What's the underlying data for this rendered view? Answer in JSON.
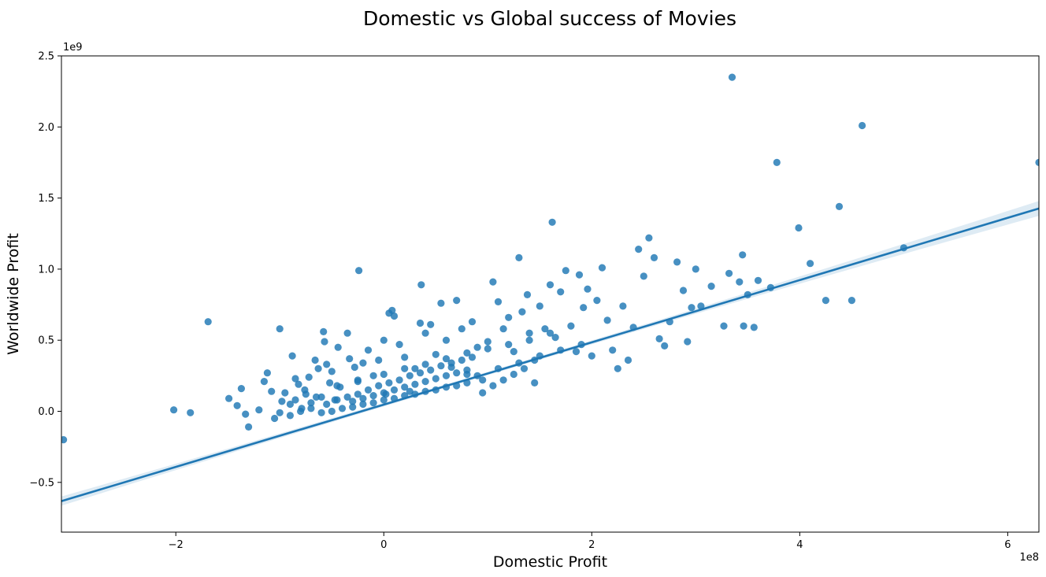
{
  "chart_data": {
    "type": "scatter",
    "title": "Domestic vs Global success of Movies",
    "xlabel": "Domestic Profit",
    "ylabel": "Worldwide Profit",
    "x_offset_label": "1e8",
    "y_offset_label": "1e9",
    "xlim": [
      -3.1,
      6.3
    ],
    "ylim": [
      -0.85,
      2.5
    ],
    "xticks": [
      -2,
      0,
      2,
      4,
      6
    ],
    "xtick_labels": [
      "−2",
      "0",
      "2",
      "4",
      "6"
    ],
    "yticks": [
      -0.5,
      0.0,
      0.5,
      1.0,
      1.5,
      2.0,
      2.5
    ],
    "ytick_labels": [
      "−0.5",
      "0.0",
      "0.5",
      "1.0",
      "1.5",
      "2.0",
      "2.5"
    ],
    "grid": false,
    "regression": {
      "slope": 0.219,
      "intercept": 0.047,
      "x_range": [
        -3.1,
        6.3
      ],
      "ci_width_at_edges": 0.08
    },
    "color": "#1f77b4",
    "points": [
      [
        -3.08,
        -0.2
      ],
      [
        -2.02,
        0.01
      ],
      [
        -1.86,
        -0.01
      ],
      [
        -1.69,
        0.63
      ],
      [
        -1.49,
        0.09
      ],
      [
        -1.41,
        0.04
      ],
      [
        -1.37,
        0.16
      ],
      [
        -1.33,
        -0.02
      ],
      [
        -1.3,
        -0.11
      ],
      [
        -1.2,
        0.01
      ],
      [
        -1.15,
        0.21
      ],
      [
        -1.12,
        0.27
      ],
      [
        -1.08,
        0.14
      ],
      [
        -1.05,
        -0.05
      ],
      [
        -1.0,
        0.58
      ],
      [
        -0.98,
        0.07
      ],
      [
        -0.95,
        0.13
      ],
      [
        -0.9,
        -0.03
      ],
      [
        -0.88,
        0.39
      ],
      [
        -0.85,
        0.23
      ],
      [
        -0.82,
        0.19
      ],
      [
        -0.79,
        0.02
      ],
      [
        -0.76,
        0.15
      ],
      [
        -0.72,
        0.24
      ],
      [
        -0.7,
        0.06
      ],
      [
        -0.66,
        0.36
      ],
      [
        -0.63,
        0.3
      ],
      [
        -0.6,
        0.1
      ],
      [
        -0.58,
        0.56
      ],
      [
        -0.57,
        0.49
      ],
      [
        -0.55,
        0.33
      ],
      [
        -0.52,
        0.2
      ],
      [
        -0.5,
        0.28
      ],
      [
        -0.47,
        0.08
      ],
      [
        -0.44,
        0.45
      ],
      [
        -0.42,
        0.17
      ],
      [
        -0.35,
        0.55
      ],
      [
        -0.33,
        0.37
      ],
      [
        -0.28,
        0.31
      ],
      [
        -0.25,
        0.22
      ],
      [
        -0.24,
        0.99
      ],
      [
        -0.2,
        0.34
      ],
      [
        -0.15,
        0.43
      ],
      [
        -0.1,
        0.25
      ],
      [
        -0.05,
        0.36
      ],
      [
        0.0,
        0.5
      ],
      [
        0.02,
        0.12
      ],
      [
        0.05,
        0.69
      ],
      [
        0.08,
        0.71
      ],
      [
        0.1,
        0.67
      ],
      [
        0.15,
        0.47
      ],
      [
        0.2,
        0.38
      ],
      [
        0.25,
        0.14
      ],
      [
        0.3,
        0.3
      ],
      [
        0.35,
        0.62
      ],
      [
        0.36,
        0.89
      ],
      [
        0.4,
        0.55
      ],
      [
        0.45,
        0.61
      ],
      [
        0.5,
        0.4
      ],
      [
        0.55,
        0.76
      ],
      [
        0.6,
        0.5
      ],
      [
        0.65,
        0.31
      ],
      [
        0.7,
        0.78
      ],
      [
        0.75,
        0.58
      ],
      [
        0.8,
        0.26
      ],
      [
        0.85,
        0.63
      ],
      [
        0.9,
        0.45
      ],
      [
        0.95,
        0.22
      ],
      [
        1.0,
        0.49
      ],
      [
        1.05,
        0.91
      ],
      [
        1.1,
        0.77
      ],
      [
        1.15,
        0.58
      ],
      [
        1.2,
        0.66
      ],
      [
        1.25,
        0.42
      ],
      [
        1.3,
        1.08
      ],
      [
        1.33,
        0.7
      ],
      [
        1.38,
        0.82
      ],
      [
        1.4,
        0.55
      ],
      [
        1.45,
        0.36
      ],
      [
        1.5,
        0.74
      ],
      [
        1.55,
        0.58
      ],
      [
        1.6,
        0.89
      ],
      [
        1.62,
        1.33
      ],
      [
        1.65,
        0.52
      ],
      [
        1.7,
        0.84
      ],
      [
        1.75,
        0.99
      ],
      [
        1.8,
        0.6
      ],
      [
        1.85,
        0.42
      ],
      [
        1.88,
        0.96
      ],
      [
        1.92,
        0.73
      ],
      [
        1.96,
        0.86
      ],
      [
        2.0,
        0.39
      ],
      [
        2.05,
        0.78
      ],
      [
        2.1,
        1.01
      ],
      [
        2.15,
        0.64
      ],
      [
        2.2,
        0.43
      ],
      [
        2.25,
        0.3
      ],
      [
        2.3,
        0.74
      ],
      [
        2.35,
        0.36
      ],
      [
        2.4,
        0.59
      ],
      [
        2.45,
        1.14
      ],
      [
        2.5,
        0.95
      ],
      [
        2.55,
        1.22
      ],
      [
        2.6,
        1.08
      ],
      [
        2.65,
        0.51
      ],
      [
        2.7,
        0.46
      ],
      [
        2.75,
        0.63
      ],
      [
        2.82,
        1.05
      ],
      [
        2.88,
        0.85
      ],
      [
        2.92,
        0.49
      ],
      [
        2.96,
        0.73
      ],
      [
        3.0,
        1.0
      ],
      [
        3.05,
        0.74
      ],
      [
        3.15,
        0.88
      ],
      [
        3.27,
        0.6
      ],
      [
        3.32,
        0.97
      ],
      [
        3.35,
        2.35
      ],
      [
        3.42,
        0.91
      ],
      [
        3.45,
        1.1
      ],
      [
        3.46,
        0.6
      ],
      [
        3.5,
        0.82
      ],
      [
        3.56,
        0.59
      ],
      [
        3.6,
        0.92
      ],
      [
        3.72,
        0.87
      ],
      [
        3.78,
        1.75
      ],
      [
        3.99,
        1.29
      ],
      [
        4.1,
        1.04
      ],
      [
        4.25,
        0.78
      ],
      [
        4.38,
        1.44
      ],
      [
        4.5,
        0.78
      ],
      [
        4.6,
        2.01
      ],
      [
        5.0,
        1.15
      ],
      [
        6.3,
        1.75
      ],
      [
        -0.6,
        -0.01
      ],
      [
        -0.5,
        0.0
      ],
      [
        -0.4,
        0.02
      ],
      [
        -0.3,
        0.03
      ],
      [
        -0.2,
        0.05
      ],
      [
        -0.1,
        0.06
      ],
      [
        0.0,
        0.08
      ],
      [
        0.1,
        0.09
      ],
      [
        0.2,
        0.11
      ],
      [
        0.3,
        0.12
      ],
      [
        0.4,
        0.14
      ],
      [
        0.5,
        0.15
      ],
      [
        0.6,
        0.17
      ],
      [
        0.7,
        0.18
      ],
      [
        0.8,
        0.2
      ],
      [
        -0.55,
        0.05
      ],
      [
        -0.45,
        0.08
      ],
      [
        -0.35,
        0.1
      ],
      [
        -0.25,
        0.12
      ],
      [
        -0.15,
        0.15
      ],
      [
        -0.05,
        0.18
      ],
      [
        0.05,
        0.2
      ],
      [
        0.15,
        0.22
      ],
      [
        0.25,
        0.25
      ],
      [
        0.35,
        0.27
      ],
      [
        0.45,
        0.29
      ],
      [
        0.55,
        0.32
      ],
      [
        0.65,
        0.34
      ],
      [
        0.75,
        0.36
      ],
      [
        0.85,
        0.38
      ],
      [
        -0.65,
        0.1
      ],
      [
        -0.45,
        0.18
      ],
      [
        -0.25,
        0.21
      ],
      [
        0.0,
        0.26
      ],
      [
        0.2,
        0.3
      ],
      [
        0.4,
        0.33
      ],
      [
        0.6,
        0.37
      ],
      [
        0.8,
        0.41
      ],
      [
        1.0,
        0.44
      ],
      [
        1.2,
        0.47
      ],
      [
        1.4,
        0.5
      ],
      [
        1.6,
        0.55
      ],
      [
        1.1,
        0.3
      ],
      [
        1.3,
        0.34
      ],
      [
        1.5,
        0.39
      ],
      [
        1.7,
        0.43
      ],
      [
        1.9,
        0.47
      ],
      [
        0.9,
        0.25
      ],
      [
        0.95,
        0.13
      ],
      [
        1.05,
        0.18
      ],
      [
        1.15,
        0.22
      ],
      [
        1.25,
        0.26
      ],
      [
        1.35,
        0.3
      ],
      [
        1.45,
        0.2
      ],
      [
        -0.7,
        0.02
      ],
      [
        -0.8,
        0.0
      ],
      [
        -0.9,
        0.05
      ],
      [
        -1.0,
        -0.01
      ],
      [
        -0.75,
        0.12
      ],
      [
        -0.85,
        0.08
      ],
      [
        -0.3,
        0.07
      ],
      [
        -0.2,
        0.09
      ],
      [
        -0.1,
        0.11
      ],
      [
        0.0,
        0.13
      ],
      [
        0.1,
        0.15
      ],
      [
        0.2,
        0.17
      ],
      [
        0.3,
        0.19
      ],
      [
        0.4,
        0.21
      ],
      [
        0.5,
        0.23
      ],
      [
        0.6,
        0.25
      ],
      [
        0.7,
        0.27
      ],
      [
        0.8,
        0.29
      ]
    ]
  }
}
